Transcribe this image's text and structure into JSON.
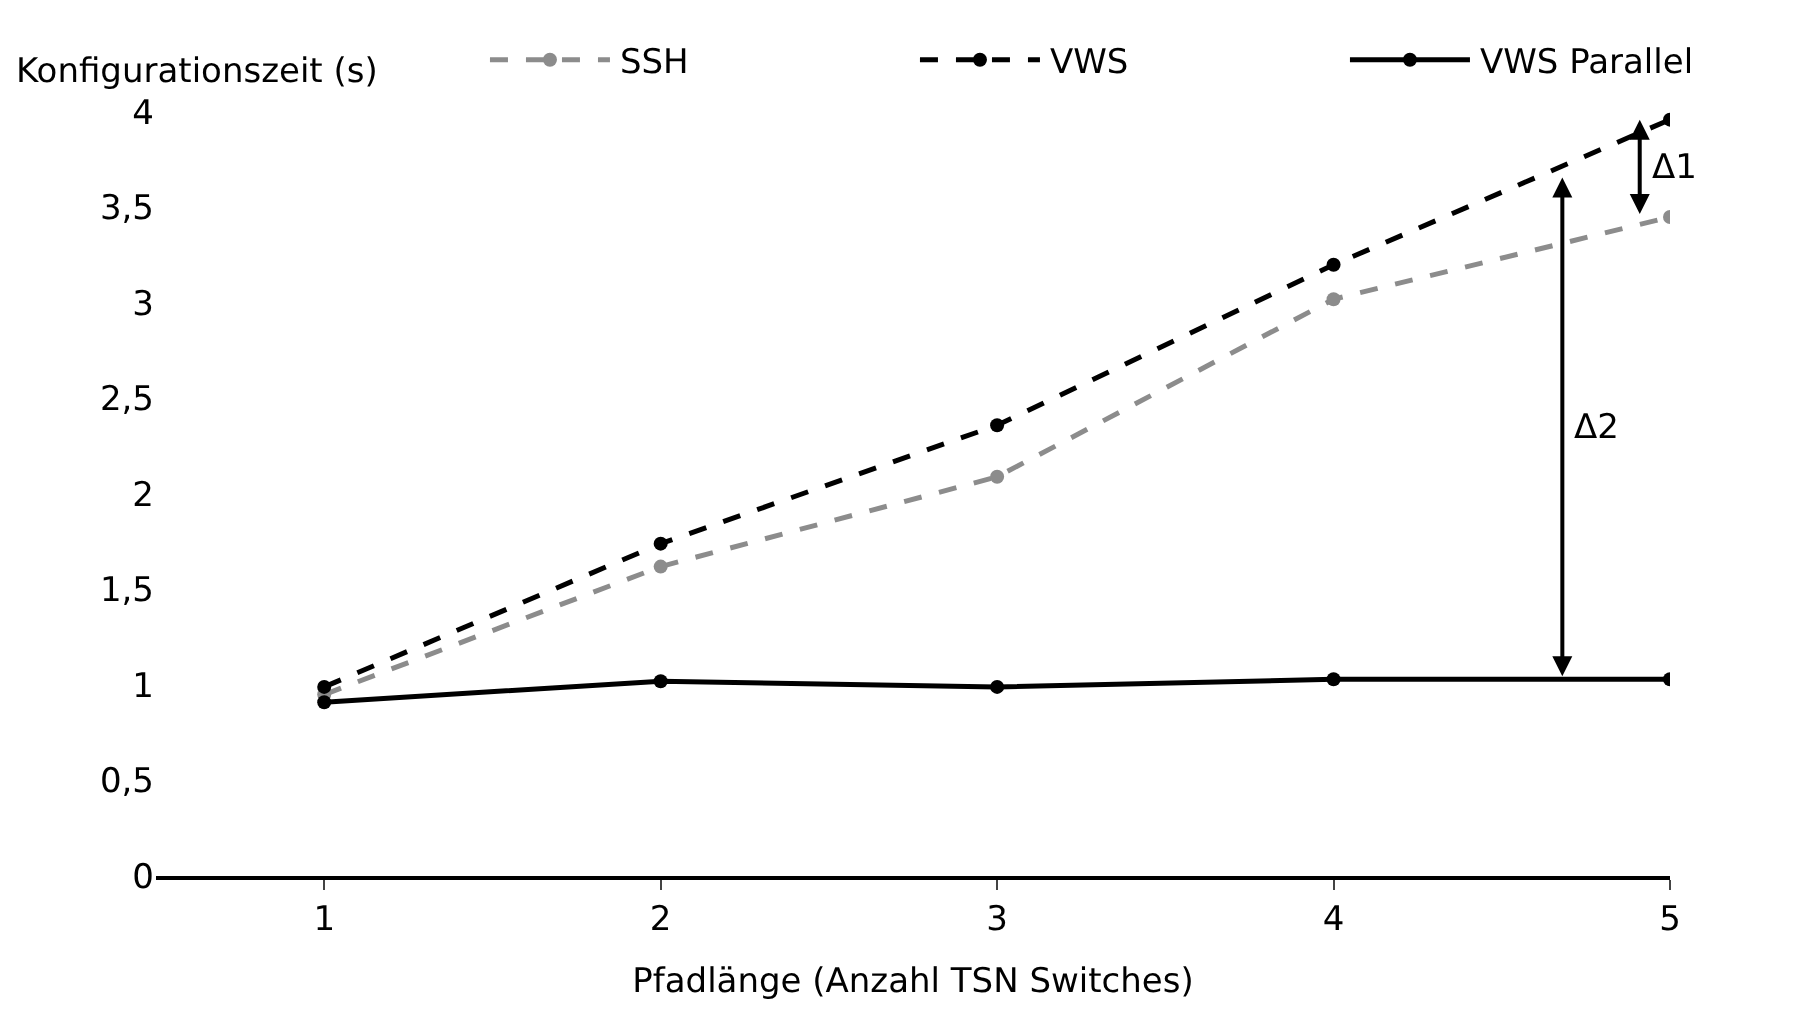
{
  "chart_data": {
    "type": "line",
    "xlabel": "Pfadlänge (Anzahl TSN Switches)",
    "ylabel": "Konfigurationszeit (s)",
    "x": [
      1,
      2,
      3,
      4,
      5
    ],
    "series": [
      {
        "name": "SSH",
        "color": "#8c8c8c",
        "line_style": "dashed",
        "values": [
          0.95,
          1.62,
          2.09,
          3.02,
          3.45
        ]
      },
      {
        "name": "VWS",
        "color": "#000000",
        "line_style": "dashed",
        "values": [
          0.99,
          1.74,
          2.36,
          3.2,
          3.96
        ]
      },
      {
        "name": "VWS Parallel",
        "color": "#000000",
        "line_style": "solid",
        "values": [
          0.91,
          1.02,
          0.99,
          1.03,
          1.03
        ]
      }
    ],
    "xlim": [
      0.5,
      5
    ],
    "xticks": [
      1,
      2,
      3,
      4,
      5
    ],
    "ylim": [
      0,
      4
    ],
    "yticks": [
      0,
      {
        "value": 0.5,
        "label": "0,5"
      },
      1,
      {
        "value": 1.5,
        "label": "1,5"
      },
      2,
      {
        "value": 2.5,
        "label": "2,5"
      },
      3,
      {
        "value": 3.5,
        "label": "3,5"
      },
      4
    ],
    "annotations": [
      "Δ1",
      "Δ2"
    ],
    "legend": "top",
    "marker": "circle"
  }
}
